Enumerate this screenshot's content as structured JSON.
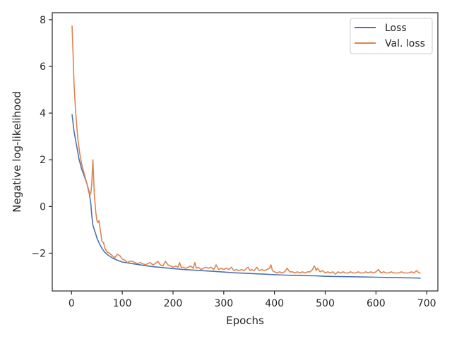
{
  "chart_data": {
    "type": "line",
    "title": "",
    "xlabel": "Epochs",
    "ylabel": "Negative log-likelihood",
    "xlim": [
      -38,
      722
    ],
    "ylim": [
      -3.62,
      8.3
    ],
    "x_ticks": [
      0,
      100,
      200,
      300,
      400,
      500,
      600,
      700
    ],
    "y_ticks": [
      -2,
      0,
      2,
      4,
      6,
      8
    ],
    "x_tick_labels": [
      "0",
      "100",
      "200",
      "300",
      "400",
      "500",
      "600",
      "700"
    ],
    "y_tick_labels": [
      "−2",
      "0",
      "2",
      "4",
      "6",
      "8"
    ],
    "grid": false,
    "legend_position": "upper right",
    "series": [
      {
        "name": "Loss",
        "color": "#4c72b0",
        "points": [
          [
            1,
            3.95
          ],
          [
            5,
            3.2
          ],
          [
            10,
            2.6
          ],
          [
            15,
            2.0
          ],
          [
            20,
            1.6
          ],
          [
            25,
            1.3
          ],
          [
            30,
            1.0
          ],
          [
            35,
            0.6
          ],
          [
            38,
            0.1
          ],
          [
            40,
            -0.4
          ],
          [
            42,
            -0.8
          ],
          [
            45,
            -1.0
          ],
          [
            48,
            -1.2
          ],
          [
            50,
            -1.35
          ],
          [
            55,
            -1.6
          ],
          [
            60,
            -1.8
          ],
          [
            65,
            -1.95
          ],
          [
            70,
            -2.05
          ],
          [
            80,
            -2.2
          ],
          [
            90,
            -2.3
          ],
          [
            100,
            -2.38
          ],
          [
            120,
            -2.45
          ],
          [
            140,
            -2.52
          ],
          [
            160,
            -2.58
          ],
          [
            180,
            -2.62
          ],
          [
            200,
            -2.66
          ],
          [
            220,
            -2.7
          ],
          [
            250,
            -2.74
          ],
          [
            280,
            -2.78
          ],
          [
            300,
            -2.81
          ],
          [
            320,
            -2.84
          ],
          [
            350,
            -2.87
          ],
          [
            380,
            -2.9
          ],
          [
            400,
            -2.92
          ],
          [
            420,
            -2.94
          ],
          [
            450,
            -2.96
          ],
          [
            480,
            -2.97
          ],
          [
            500,
            -2.99
          ],
          [
            520,
            -3.0
          ],
          [
            550,
            -3.01
          ],
          [
            580,
            -3.02
          ],
          [
            600,
            -3.03
          ],
          [
            620,
            -3.04
          ],
          [
            650,
            -3.05
          ],
          [
            670,
            -3.06
          ],
          [
            688,
            -3.07
          ]
        ]
      },
      {
        "name": "Val. loss",
        "color": "#dd8452",
        "points": [
          [
            1,
            7.75
          ],
          [
            3,
            6.5
          ],
          [
            5,
            5.2
          ],
          [
            8,
            4.1
          ],
          [
            12,
            3.0
          ],
          [
            16,
            2.3
          ],
          [
            20,
            1.8
          ],
          [
            25,
            1.4
          ],
          [
            30,
            1.0
          ],
          [
            34,
            0.6
          ],
          [
            36,
            0.5
          ],
          [
            38,
            0.55
          ],
          [
            40,
            1.0
          ],
          [
            41,
            1.6
          ],
          [
            42,
            2.0
          ],
          [
            43,
            1.5
          ],
          [
            45,
            0.5
          ],
          [
            48,
            -0.3
          ],
          [
            50,
            -0.6
          ],
          [
            52,
            -0.7
          ],
          [
            54,
            -0.6
          ],
          [
            56,
            -0.9
          ],
          [
            58,
            -1.2
          ],
          [
            60,
            -1.5
          ],
          [
            63,
            -1.55
          ],
          [
            66,
            -1.8
          ],
          [
            70,
            -1.95
          ],
          [
            75,
            -2.0
          ],
          [
            80,
            -2.1
          ],
          [
            85,
            -2.2
          ],
          [
            90,
            -2.05
          ],
          [
            95,
            -2.1
          ],
          [
            100,
            -2.25
          ],
          [
            105,
            -2.3
          ],
          [
            110,
            -2.4
          ],
          [
            115,
            -2.35
          ],
          [
            120,
            -2.35
          ],
          [
            125,
            -2.4
          ],
          [
            130,
            -2.45
          ],
          [
            135,
            -2.4
          ],
          [
            140,
            -2.45
          ],
          [
            145,
            -2.5
          ],
          [
            150,
            -2.45
          ],
          [
            155,
            -2.4
          ],
          [
            160,
            -2.5
          ],
          [
            165,
            -2.45
          ],
          [
            170,
            -2.35
          ],
          [
            175,
            -2.5
          ],
          [
            180,
            -2.55
          ],
          [
            185,
            -2.35
          ],
          [
            190,
            -2.5
          ],
          [
            195,
            -2.55
          ],
          [
            200,
            -2.6
          ],
          [
            205,
            -2.55
          ],
          [
            210,
            -2.6
          ],
          [
            213,
            -2.4
          ],
          [
            216,
            -2.6
          ],
          [
            220,
            -2.6
          ],
          [
            225,
            -2.65
          ],
          [
            230,
            -2.6
          ],
          [
            235,
            -2.55
          ],
          [
            240,
            -2.65
          ],
          [
            243,
            -2.4
          ],
          [
            246,
            -2.65
          ],
          [
            250,
            -2.6
          ],
          [
            255,
            -2.7
          ],
          [
            260,
            -2.65
          ],
          [
            265,
            -2.6
          ],
          [
            270,
            -2.65
          ],
          [
            275,
            -2.6
          ],
          [
            280,
            -2.7
          ],
          [
            285,
            -2.5
          ],
          [
            290,
            -2.7
          ],
          [
            295,
            -2.65
          ],
          [
            300,
            -2.7
          ],
          [
            305,
            -2.65
          ],
          [
            310,
            -2.7
          ],
          [
            315,
            -2.6
          ],
          [
            320,
            -2.75
          ],
          [
            325,
            -2.7
          ],
          [
            330,
            -2.75
          ],
          [
            335,
            -2.7
          ],
          [
            340,
            -2.75
          ],
          [
            345,
            -2.65
          ],
          [
            348,
            -2.6
          ],
          [
            352,
            -2.75
          ],
          [
            355,
            -2.7
          ],
          [
            360,
            -2.75
          ],
          [
            365,
            -2.6
          ],
          [
            370,
            -2.75
          ],
          [
            375,
            -2.7
          ],
          [
            380,
            -2.75
          ],
          [
            385,
            -2.7
          ],
          [
            390,
            -2.65
          ],
          [
            393,
            -2.5
          ],
          [
            396,
            -2.75
          ],
          [
            400,
            -2.8
          ],
          [
            405,
            -2.85
          ],
          [
            410,
            -2.8
          ],
          [
            415,
            -2.85
          ],
          [
            420,
            -2.8
          ],
          [
            425,
            -2.65
          ],
          [
            430,
            -2.8
          ],
          [
            435,
            -2.8
          ],
          [
            440,
            -2.85
          ],
          [
            445,
            -2.8
          ],
          [
            450,
            -2.85
          ],
          [
            455,
            -2.8
          ],
          [
            460,
            -2.85
          ],
          [
            465,
            -2.8
          ],
          [
            470,
            -2.8
          ],
          [
            475,
            -2.7
          ],
          [
            478,
            -2.55
          ],
          [
            480,
            -2.6
          ],
          [
            482,
            -2.75
          ],
          [
            485,
            -2.65
          ],
          [
            490,
            -2.8
          ],
          [
            495,
            -2.75
          ],
          [
            500,
            -2.85
          ],
          [
            505,
            -2.8
          ],
          [
            510,
            -2.85
          ],
          [
            515,
            -2.8
          ],
          [
            520,
            -2.9
          ],
          [
            525,
            -2.8
          ],
          [
            530,
            -2.85
          ],
          [
            535,
            -2.8
          ],
          [
            540,
            -2.85
          ],
          [
            545,
            -2.85
          ],
          [
            550,
            -2.8
          ],
          [
            555,
            -2.85
          ],
          [
            560,
            -2.85
          ],
          [
            565,
            -2.8
          ],
          [
            570,
            -2.85
          ],
          [
            575,
            -2.85
          ],
          [
            580,
            -2.8
          ],
          [
            585,
            -2.85
          ],
          [
            590,
            -2.8
          ],
          [
            595,
            -2.85
          ],
          [
            600,
            -2.8
          ],
          [
            605,
            -2.7
          ],
          [
            610,
            -2.85
          ],
          [
            615,
            -2.8
          ],
          [
            620,
            -2.85
          ],
          [
            625,
            -2.85
          ],
          [
            630,
            -2.8
          ],
          [
            635,
            -2.85
          ],
          [
            640,
            -2.85
          ],
          [
            645,
            -2.85
          ],
          [
            650,
            -2.8
          ],
          [
            655,
            -2.85
          ],
          [
            660,
            -2.85
          ],
          [
            665,
            -2.85
          ],
          [
            670,
            -2.8
          ],
          [
            675,
            -2.85
          ],
          [
            680,
            -2.75
          ],
          [
            685,
            -2.85
          ],
          [
            688,
            -2.85
          ]
        ]
      }
    ]
  }
}
